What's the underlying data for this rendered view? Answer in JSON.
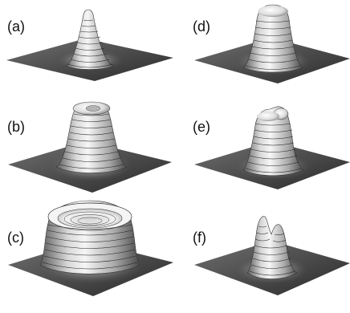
{
  "panels": [
    {
      "id": "a",
      "label": "(a)",
      "shape": "narrow-peak"
    },
    {
      "id": "b",
      "label": "(b)",
      "shape": "peak-with-top-dip"
    },
    {
      "id": "c",
      "label": "(c)",
      "shape": "wide-ring-crater"
    },
    {
      "id": "d",
      "label": "(d)",
      "shape": "rounded-dome"
    },
    {
      "id": "e",
      "label": "(e)",
      "shape": "dome-with-shoulder-bump"
    },
    {
      "id": "f",
      "label": "(f)",
      "shape": "double-peak"
    }
  ],
  "colors": {
    "plane_light": "#6a6a6a",
    "plane_dark": "#2e2e2e",
    "surface_light": "#f4f4f4",
    "surface_dark": "#3c3c3c",
    "contour": "#222222"
  }
}
